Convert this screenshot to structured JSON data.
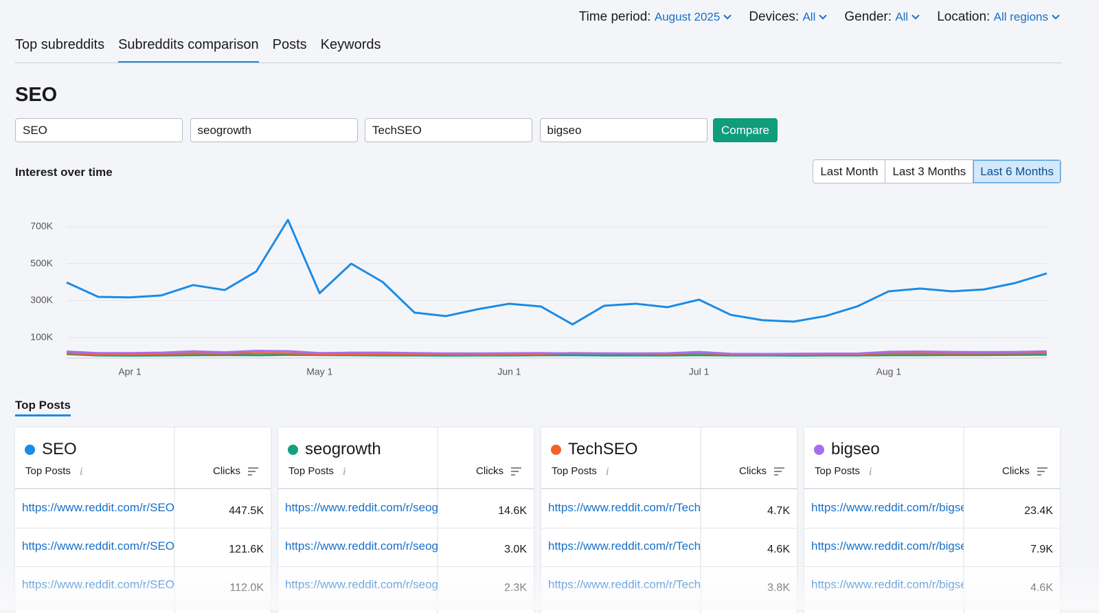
{
  "filters": [
    {
      "label": "Time period:",
      "value": "August 2025"
    },
    {
      "label": "Devices:",
      "value": "All"
    },
    {
      "label": "Gender:",
      "value": "All"
    },
    {
      "label": "Location:",
      "value": "All regions"
    }
  ],
  "tabs": [
    "Top subreddits",
    "Subreddits comparison",
    "Posts",
    "Keywords"
  ],
  "heading": "SEO",
  "inputs": [
    "SEO",
    "seogrowth",
    "TechSEO",
    "bigseo"
  ],
  "compare_button": "Compare",
  "section_title": "Interest over time",
  "ranges": [
    "Last Month",
    "Last 3 Months",
    "Last 6 Months"
  ],
  "chart_data": {
    "type": "line",
    "categories": [
      null,
      null,
      "Apr 1",
      null,
      null,
      null,
      null,
      null,
      "May 1",
      null,
      null,
      null,
      null,
      null,
      "Jun 1",
      null,
      null,
      null,
      null,
      null,
      "Jul 1",
      null,
      null,
      null,
      null,
      null,
      "Aug 1",
      null,
      null,
      null,
      null,
      null
    ],
    "series": [
      {
        "name": "SEO",
        "color": "#1a8be6",
        "values": [
          398000,
          320000,
          317000,
          328000,
          384000,
          357000,
          458000,
          737000,
          340000,
          500000,
          400000,
          235000,
          216000,
          253000,
          283000,
          268000,
          171000,
          272000,
          283000,
          264000,
          305000,
          223000,
          194000,
          186000,
          216000,
          268000,
          350000,
          365000,
          350000,
          360000,
          395000,
          447000
        ]
      },
      {
        "name": "seogrowth",
        "color": "#12a07f",
        "values": [
          10000,
          3000,
          2000,
          3000,
          4000,
          5000,
          4000,
          6000,
          5000,
          4000,
          3000,
          3000,
          2000,
          3000,
          3000,
          4000,
          4000,
          3000,
          3000,
          3000,
          4000,
          3000,
          3000,
          2000,
          3000,
          3000,
          4000,
          4000,
          5000,
          5000,
          6000,
          7000
        ]
      },
      {
        "name": "TechSEO",
        "color": "#f2622b",
        "values": [
          15000,
          8000,
          8000,
          10000,
          14000,
          12000,
          16000,
          14000,
          9000,
          10000,
          9000,
          9000,
          8000,
          8000,
          9000,
          10000,
          16000,
          14000,
          12000,
          11000,
          16000,
          9000,
          8000,
          8000,
          9000,
          9000,
          14000,
          14000,
          13000,
          13000,
          14000,
          16000
        ]
      },
      {
        "name": "bigseo",
        "color": "#a56ef0",
        "values": [
          24000,
          16000,
          16000,
          18000,
          25000,
          20000,
          28000,
          26000,
          16000,
          18000,
          18000,
          16000,
          14000,
          14000,
          15000,
          16000,
          14000,
          14000,
          14000,
          15000,
          22000,
          12000,
          11000,
          12000,
          13000,
          13000,
          23000,
          24000,
          22000,
          21000,
          22000,
          25000
        ]
      }
    ],
    "ylim": [
      0,
      800000
    ],
    "yticks": [
      {
        "value": 100000,
        "label": "100K"
      },
      {
        "value": 300000,
        "label": "300K"
      },
      {
        "value": 500000,
        "label": "500K"
      },
      {
        "value": 700000,
        "label": "700K"
      }
    ],
    "grid": true
  },
  "top_posts_title": "Top Posts",
  "cards": [
    {
      "name": "SEO",
      "col1": "Top Posts",
      "col2": "Clicks",
      "rows": [
        {
          "url": "https://www.reddit.com/r/SEO/",
          "clicks": "447.5K"
        },
        {
          "url": "https://www.reddit.com/r/SEO/",
          "clicks": "121.6K"
        },
        {
          "url": "https://www.reddit.com/r/SEO/",
          "clicks": "112.0K"
        }
      ]
    },
    {
      "name": "seogrowth",
      "col1": "Top Posts",
      "col2": "Clicks",
      "rows": [
        {
          "url": "https://www.reddit.com/r/seogrowth/",
          "clicks": "14.6K"
        },
        {
          "url": "https://www.reddit.com/r/seogrowth/",
          "clicks": "3.0K"
        },
        {
          "url": "https://www.reddit.com/r/seogrowth/",
          "clicks": "2.3K"
        }
      ]
    },
    {
      "name": "TechSEO",
      "col1": "Top Posts",
      "col2": "Clicks",
      "rows": [
        {
          "url": "https://www.reddit.com/r/TechSEO/",
          "clicks": "4.7K"
        },
        {
          "url": "https://www.reddit.com/r/TechSEO/",
          "clicks": "4.6K"
        },
        {
          "url": "https://www.reddit.com/r/TechSEO/",
          "clicks": "3.8K"
        }
      ]
    },
    {
      "name": "bigseo",
      "col1": "Top Posts",
      "col2": "Clicks",
      "rows": [
        {
          "url": "https://www.reddit.com/r/bigseo/",
          "clicks": "23.4K"
        },
        {
          "url": "https://www.reddit.com/r/bigseo/",
          "clicks": "7.9K"
        },
        {
          "url": "https://www.reddit.com/r/bigseo/",
          "clicks": "4.6K"
        }
      ]
    }
  ]
}
